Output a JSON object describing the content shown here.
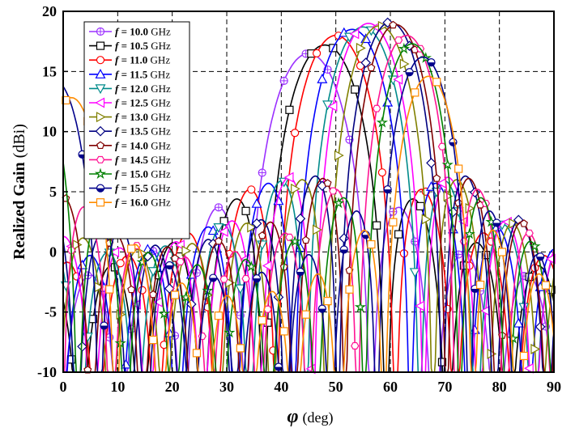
{
  "chart_data": {
    "type": "line",
    "xlabel_symbol": "φ",
    "xlabel_unit": "(deg)",
    "ylabel_main": "Realized Gain",
    "ylabel_unit": "(dBi)",
    "xlim": [
      0,
      90
    ],
    "ylim": [
      -10,
      20
    ],
    "xticks": [
      "0",
      "10",
      "20",
      "30",
      "40",
      "50",
      "60",
      "70",
      "80",
      "90"
    ],
    "yticks": [
      "-10",
      "-5",
      "0",
      "5",
      "10",
      "15",
      "20"
    ],
    "grid": true,
    "legend_position": "top-left",
    "series": [
      {
        "name": "f = 10.0 GHz",
        "f": "10.0",
        "color": "#9b30ff",
        "marker": "circle-plus",
        "peak_x": 45,
        "peak_y": 16.5
      },
      {
        "name": "f = 10.5 GHz",
        "f": "10.5",
        "color": "#000000",
        "marker": "square",
        "peak_x": 48,
        "peak_y": 17.2
      },
      {
        "name": "f = 11.0 GHz",
        "f": "11.0",
        "color": "#ff0000",
        "marker": "circle",
        "peak_x": 50,
        "peak_y": 18.0
      },
      {
        "name": "f = 11.5 GHz",
        "f": "11.5",
        "color": "#0000ff",
        "marker": "triangle-up",
        "peak_x": 53,
        "peak_y": 18.5
      },
      {
        "name": "f = 12.0 GHz",
        "f": "12.0",
        "color": "#008b8b",
        "marker": "triangle-down",
        "peak_x": 55,
        "peak_y": 18.7
      },
      {
        "name": "f = 12.5 GHz",
        "f": "12.5",
        "color": "#ff00ff",
        "marker": "triangle-left",
        "peak_x": 56,
        "peak_y": 19.0
      },
      {
        "name": "f = 13.0 GHz",
        "f": "13.0",
        "color": "#808000",
        "marker": "triangle-right",
        "peak_x": 58,
        "peak_y": 18.8
      },
      {
        "name": "f = 13.5 GHz",
        "f": "13.5",
        "color": "#000080",
        "marker": "diamond",
        "peak_x": 60,
        "peak_y": 19.1
      },
      {
        "name": "f = 14.0 GHz",
        "f": "14.0",
        "color": "#800000",
        "marker": "pentagon",
        "peak_x": 61,
        "peak_y": 18.9
      },
      {
        "name": "f = 14.5 GHz",
        "f": "14.5",
        "color": "#ff1493",
        "marker": "hexagon",
        "peak_x": 63,
        "peak_y": 18.0
      },
      {
        "name": "f = 15.0 GHz",
        "f": "15.0",
        "color": "#008000",
        "marker": "star",
        "peak_x": 64,
        "peak_y": 17.3
      },
      {
        "name": "f = 15.5 GHz",
        "f": "15.5",
        "color": "#00008b",
        "marker": "circle-half",
        "peak_x": 66,
        "peak_y": 16.2
      },
      {
        "name": "f = 16.0 GHz",
        "f": "16.0",
        "color": "#ff8c00",
        "marker": "square",
        "peak_x": 67,
        "peak_y": 14.6
      }
    ]
  }
}
